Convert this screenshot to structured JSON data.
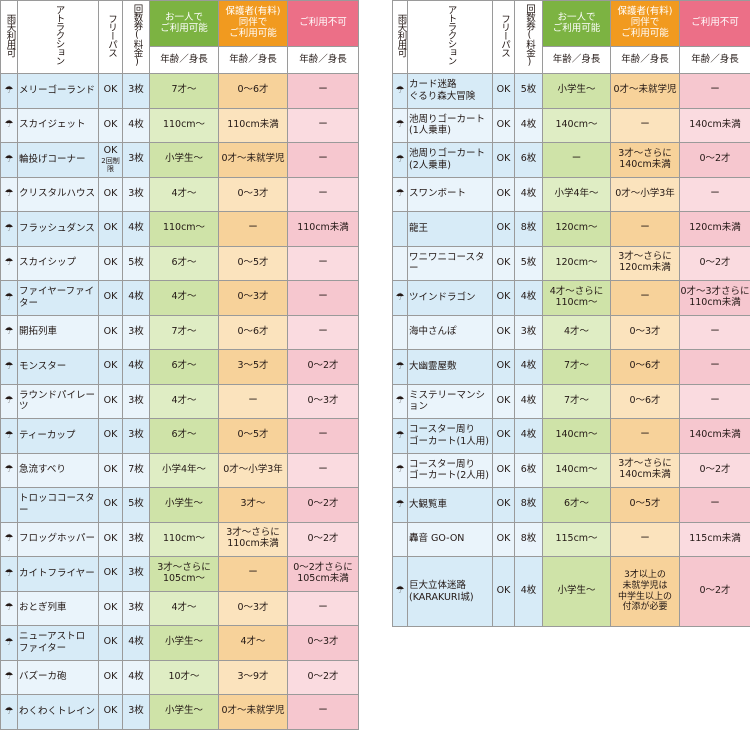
{
  "headers": {
    "rain": "雨天利用可",
    "attraction": "アトラクション",
    "freepass": "フリーパス",
    "tickets": "回数券(料金)",
    "alone": "お一人で\nご利用可能",
    "guardian": "保護者(有料)\n同伴で\nご利用可能",
    "not_allowed": "ご利用不可",
    "age_height": "年齢／身長"
  },
  "left_rows": [
    {
      "name": "メリーゴーランド",
      "rain": true,
      "freepass": "OK",
      "tickets": "3枚",
      "alone": "7才〜",
      "guardian": "0〜6才",
      "not_allowed": "ー"
    },
    {
      "name": "スカイジェット",
      "rain": true,
      "freepass": "OK",
      "tickets": "4枚",
      "alone": "110cm〜",
      "guardian": "110cm未満",
      "not_allowed": "ー"
    },
    {
      "name": "輪投げコーナー",
      "rain": true,
      "freepass": "OK",
      "freepass_note": "2回制限",
      "tickets": "3枚",
      "alone": "小学生〜",
      "guardian": "0才〜未就学児",
      "not_allowed": "ー"
    },
    {
      "name": "クリスタルハウス",
      "rain": true,
      "freepass": "OK",
      "tickets": "3枚",
      "alone": "4才〜",
      "guardian": "0〜3才",
      "not_allowed": "ー"
    },
    {
      "name": "フラッシュダンス",
      "rain": true,
      "freepass": "OK",
      "tickets": "4枚",
      "alone": "110cm〜",
      "guardian": "ー",
      "not_allowed": "110cm未満"
    },
    {
      "name": "スカイシップ",
      "rain": true,
      "freepass": "OK",
      "tickets": "5枚",
      "alone": "6才〜",
      "guardian": "0〜5才",
      "not_allowed": "ー"
    },
    {
      "name": "ファイヤーファイター",
      "rain": true,
      "freepass": "OK",
      "tickets": "4枚",
      "alone": "4才〜",
      "guardian": "0〜3才",
      "not_allowed": "ー"
    },
    {
      "name": "開拓列車",
      "rain": true,
      "freepass": "OK",
      "tickets": "3枚",
      "alone": "7才〜",
      "guardian": "0〜6才",
      "not_allowed": "ー"
    },
    {
      "name": "モンスター",
      "rain": true,
      "freepass": "OK",
      "tickets": "4枚",
      "alone": "6才〜",
      "guardian": "3〜5才",
      "not_allowed": "0〜2才"
    },
    {
      "name": "ラウンドパイレーツ",
      "rain": true,
      "freepass": "OK",
      "tickets": "3枚",
      "alone": "4才〜",
      "guardian": "ー",
      "not_allowed": "0〜3才"
    },
    {
      "name": "ティーカップ",
      "rain": true,
      "freepass": "OK",
      "tickets": "3枚",
      "alone": "6才〜",
      "guardian": "0〜5才",
      "not_allowed": "ー"
    },
    {
      "name": "急流すべり",
      "rain": true,
      "freepass": "OK",
      "tickets": "7枚",
      "alone": "小学4年〜",
      "guardian": "0才〜小学3年",
      "not_allowed": "ー"
    },
    {
      "name": "トロッココースター",
      "rain": false,
      "freepass": "OK",
      "tickets": "5枚",
      "alone": "小学生〜",
      "guardian": "3才〜",
      "not_allowed": "0〜2才"
    },
    {
      "name": "フロッグホッパー",
      "rain": true,
      "freepass": "OK",
      "tickets": "3枚",
      "alone": "110cm〜",
      "guardian": "3才〜さらに\n110cm未満",
      "not_allowed": "0〜2才"
    },
    {
      "name": "カイトフライヤー",
      "rain": true,
      "freepass": "OK",
      "tickets": "3枚",
      "alone": "3才〜さらに\n105cm〜",
      "guardian": "ー",
      "not_allowed": "0〜2才さらに\n105cm未満"
    },
    {
      "name": "おとぎ列車",
      "rain": true,
      "freepass": "OK",
      "tickets": "3枚",
      "alone": "4才〜",
      "guardian": "0〜3才",
      "not_allowed": "ー"
    },
    {
      "name": "ニューアストロ\nファイター",
      "rain": true,
      "freepass": "OK",
      "tickets": "4枚",
      "alone": "小学生〜",
      "guardian": "4才〜",
      "not_allowed": "0〜3才"
    },
    {
      "name": "バズーカ砲",
      "rain": true,
      "freepass": "OK",
      "tickets": "4枚",
      "alone": "10才〜",
      "guardian": "3〜9才",
      "not_allowed": "0〜2才"
    },
    {
      "name": "わくわくトレイン",
      "rain": true,
      "freepass": "OK",
      "tickets": "3枚",
      "alone": "小学生〜",
      "guardian": "0才〜未就学児",
      "not_allowed": "ー"
    }
  ],
  "right_rows": [
    {
      "name": "カード迷路\nぐるり森大冒険",
      "rain": true,
      "freepass": "OK",
      "tickets": "5枚",
      "alone": "小学生〜",
      "guardian": "0才〜未就学児",
      "not_allowed": "ー"
    },
    {
      "name": "池周りゴーカート\n(1人乗車)",
      "rain": true,
      "freepass": "OK",
      "tickets": "4枚",
      "alone": "140cm〜",
      "guardian": "ー",
      "not_allowed": "140cm未満"
    },
    {
      "name": "池周りゴーカート\n(2人乗車)",
      "rain": true,
      "freepass": "OK",
      "tickets": "6枚",
      "alone": "ー",
      "guardian": "3才〜さらに\n140cm未満",
      "not_allowed": "0〜2才"
    },
    {
      "name": "スワンボート",
      "rain": true,
      "freepass": "OK",
      "tickets": "4枚",
      "alone": "小学4年〜",
      "guardian": "0才〜小学3年",
      "not_allowed": "ー"
    },
    {
      "name": "龍王",
      "rain": false,
      "freepass": "OK",
      "tickets": "8枚",
      "alone": "120cm〜",
      "guardian": "ー",
      "not_allowed": "120cm未満"
    },
    {
      "name": "ワニワニコースター",
      "rain": false,
      "freepass": "OK",
      "tickets": "5枚",
      "alone": "120cm〜",
      "guardian": "3才〜さらに\n120cm未満",
      "not_allowed": "0〜2才"
    },
    {
      "name": "ツインドラゴン",
      "rain": true,
      "freepass": "OK",
      "tickets": "4枚",
      "alone": "4才〜さらに\n110cm〜",
      "guardian": "ー",
      "not_allowed": "0才〜3才さらに\n110cm未満"
    },
    {
      "name": "海中さんぽ",
      "rain": false,
      "freepass": "OK",
      "tickets": "3枚",
      "alone": "4才〜",
      "guardian": "0〜3才",
      "not_allowed": "ー"
    },
    {
      "name": "大幽霊屋敷",
      "rain": true,
      "freepass": "OK",
      "tickets": "4枚",
      "alone": "7才〜",
      "guardian": "0〜6才",
      "not_allowed": "ー"
    },
    {
      "name": "ミステリーマンション",
      "rain": true,
      "freepass": "OK",
      "tickets": "4枚",
      "alone": "7才〜",
      "guardian": "0〜6才",
      "not_allowed": "ー"
    },
    {
      "name": "コースター周り\nゴーカート(1人用)",
      "rain": true,
      "freepass": "OK",
      "tickets": "4枚",
      "alone": "140cm〜",
      "guardian": "ー",
      "not_allowed": "140cm未満"
    },
    {
      "name": "コースター周り\nゴーカート(2人用)",
      "rain": true,
      "freepass": "OK",
      "tickets": "6枚",
      "alone": "140cm〜",
      "guardian": "3才〜さらに\n140cm未満",
      "not_allowed": "0〜2才"
    },
    {
      "name": "大観覧車",
      "rain": true,
      "freepass": "OK",
      "tickets": "8枚",
      "alone": "6才〜",
      "guardian": "0〜5才",
      "not_allowed": "ー"
    },
    {
      "name": "轟音 GO-ON",
      "rain": false,
      "freepass": "OK",
      "tickets": "8枚",
      "alone": "115cm〜",
      "guardian": "ー",
      "not_allowed": "115cm未満"
    },
    {
      "name": "巨大立体迷路\n(KARAKURI城)",
      "rain": true,
      "freepass": "OK",
      "tickets": "4枚",
      "alone": "小学生〜",
      "guardian": "3才以上の\n未就学児は\n中学生以上の\n付添が必要",
      "not_allowed": "0〜2才"
    }
  ],
  "icons": {
    "umbrella": "umbrella-icon"
  },
  "colors": {
    "alone_header": "#7cb342",
    "guardian_header": "#f19a1f",
    "not_allowed_header": "#ec6f87",
    "alone_cell": "#cfe3a8",
    "guardian_cell": "#f7d29a",
    "not_allowed_cell": "#f6c7cf",
    "name_cell": "#eaf4fb"
  }
}
